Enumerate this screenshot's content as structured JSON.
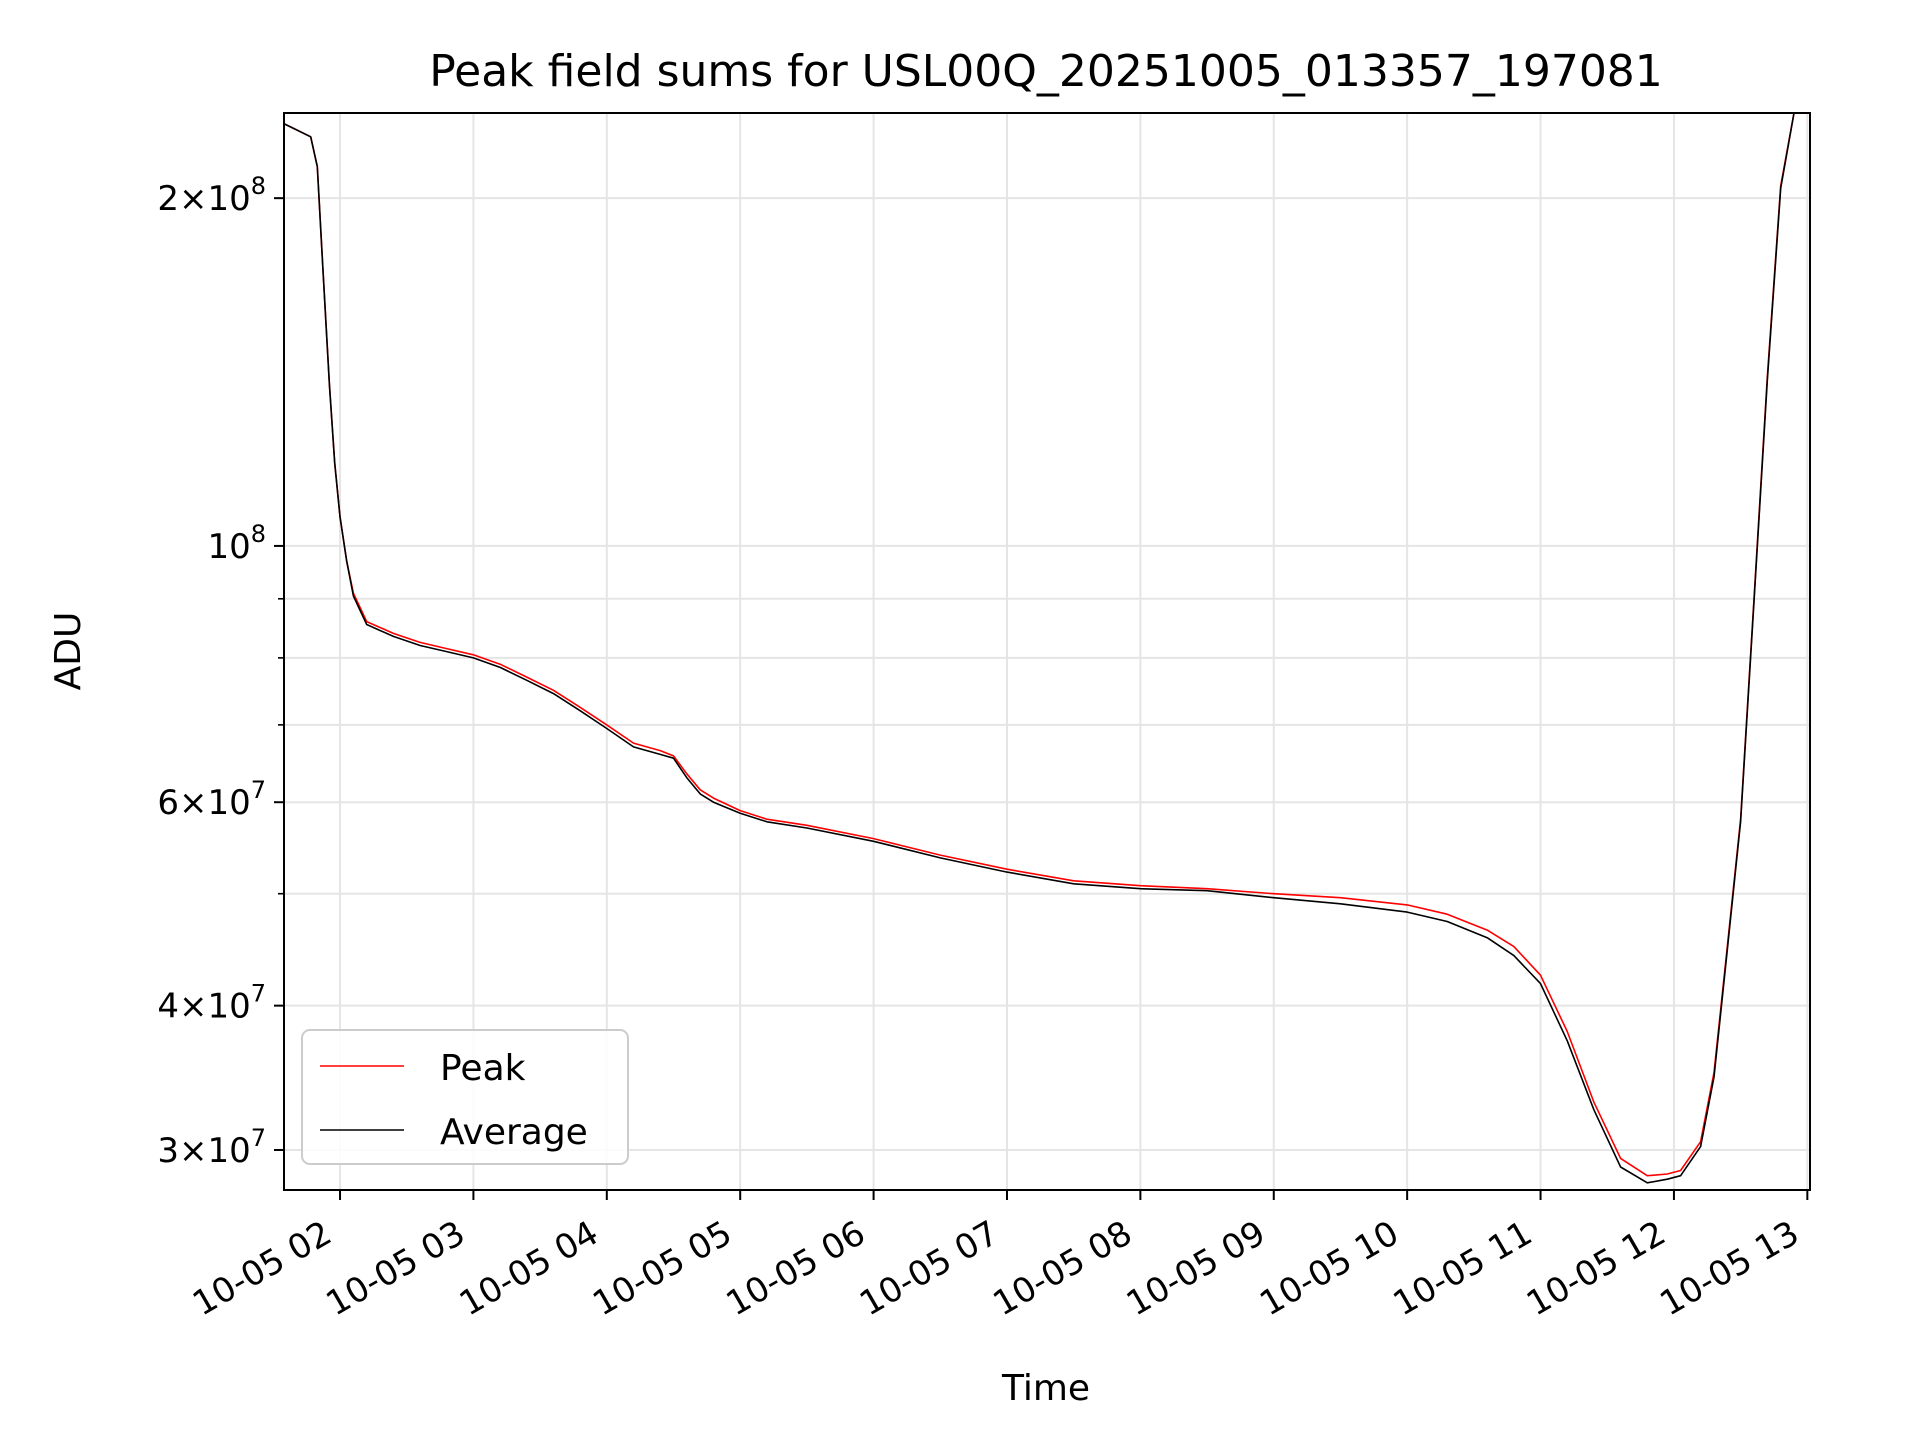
{
  "chart_data": {
    "type": "line",
    "title": "Peak field sums for USL00Q_20251005_013357_197081",
    "xlabel": "Time",
    "ylabel": "ADU",
    "yscale": "log",
    "ylim": [
      27700000,
      237000000
    ],
    "xlim_hours": [
      1.58,
      13.02
    ],
    "grid": true,
    "legend_location": "lower-left",
    "x_ticks": [
      {
        "value": 2,
        "label": "10-05 02"
      },
      {
        "value": 3,
        "label": "10-05 03"
      },
      {
        "value": 4,
        "label": "10-05 04"
      },
      {
        "value": 5,
        "label": "10-05 05"
      },
      {
        "value": 6,
        "label": "10-05 06"
      },
      {
        "value": 7,
        "label": "10-05 07"
      },
      {
        "value": 8,
        "label": "10-05 08"
      },
      {
        "value": 9,
        "label": "10-05 09"
      },
      {
        "value": 10,
        "label": "10-05 10"
      },
      {
        "value": 11,
        "label": "10-05 11"
      },
      {
        "value": 12,
        "label": "10-05 12"
      },
      {
        "value": 13,
        "label": "10-05 13"
      }
    ],
    "y_major_ticks": [
      {
        "value": 30000000,
        "mant": "3",
        "exp": "7"
      },
      {
        "value": 40000000,
        "mant": "4",
        "exp": "7"
      },
      {
        "value": 60000000,
        "mant": "6",
        "exp": "7"
      },
      {
        "value": 100000000,
        "mant": "",
        "exp": "8"
      },
      {
        "value": 200000000,
        "mant": "2",
        "exp": "8"
      }
    ],
    "y_minor_ticks": [
      50000000,
      70000000,
      80000000,
      90000000
    ],
    "series": [
      {
        "name": "Peak",
        "color": "#ff0000",
        "x": [
          1.58,
          1.78,
          1.83,
          1.87,
          1.92,
          1.96,
          2.0,
          2.05,
          2.1,
          2.2,
          2.4,
          2.6,
          2.8,
          3.0,
          3.2,
          3.4,
          3.6,
          3.8,
          4.0,
          4.2,
          4.4,
          4.5,
          4.6,
          4.7,
          4.8,
          5.0,
          5.2,
          5.5,
          6.0,
          6.5,
          7.0,
          7.5,
          8.0,
          8.5,
          9.0,
          9.5,
          10.0,
          10.3,
          10.6,
          10.8,
          11.0,
          11.2,
          11.4,
          11.6,
          11.8,
          11.95,
          12.05,
          12.2,
          12.3,
          12.4,
          12.5,
          12.6,
          12.7,
          12.8,
          12.9
        ],
        "values": [
          232000000,
          226000000,
          213000000,
          175000000,
          138000000,
          118000000,
          106000000,
          97000000,
          91000000,
          86000000,
          84000000,
          82500000,
          81500000,
          80500000,
          79000000,
          77000000,
          75000000,
          72500000,
          70000000,
          67500000,
          66500000,
          65800000,
          63500000,
          61500000,
          60500000,
          59000000,
          58000000,
          57300000,
          55800000,
          54000000,
          52500000,
          51300000,
          50800000,
          50500000,
          50000000,
          49600000,
          48900000,
          48000000,
          46500000,
          45000000,
          42500000,
          38000000,
          33000000,
          29500000,
          28500000,
          28600000,
          28800000,
          30500000,
          35000000,
          45000000,
          58000000,
          90000000,
          140000000,
          205000000,
          237000000
        ]
      },
      {
        "name": "Average",
        "color": "#000000",
        "x": [
          1.58,
          1.78,
          1.83,
          1.87,
          1.92,
          1.96,
          2.0,
          2.05,
          2.1,
          2.2,
          2.4,
          2.6,
          2.8,
          3.0,
          3.2,
          3.4,
          3.6,
          3.8,
          4.0,
          4.2,
          4.4,
          4.5,
          4.6,
          4.7,
          4.8,
          5.0,
          5.2,
          5.5,
          6.0,
          6.5,
          7.0,
          7.5,
          8.0,
          8.5,
          9.0,
          9.5,
          10.0,
          10.3,
          10.6,
          10.8,
          11.0,
          11.2,
          11.4,
          11.6,
          11.8,
          11.95,
          12.05,
          12.2,
          12.3,
          12.4,
          12.5,
          12.6,
          12.7,
          12.8,
          12.9
        ],
        "values": [
          232000000,
          226000000,
          213000000,
          175000000,
          138000000,
          118000000,
          106000000,
          97000000,
          90500000,
          85500000,
          83500000,
          82000000,
          81000000,
          80000000,
          78500000,
          76500000,
          74500000,
          72000000,
          69500000,
          67000000,
          66000000,
          65500000,
          63000000,
          61000000,
          60000000,
          58700000,
          57700000,
          57000000,
          55500000,
          53700000,
          52200000,
          51000000,
          50500000,
          50300000,
          49600000,
          49000000,
          48200000,
          47300000,
          45800000,
          44200000,
          41800000,
          37300000,
          32500000,
          29000000,
          28100000,
          28300000,
          28500000,
          30200000,
          34700000,
          44700000,
          57700000,
          89500000,
          139000000,
          204000000,
          237000000
        ]
      }
    ]
  }
}
